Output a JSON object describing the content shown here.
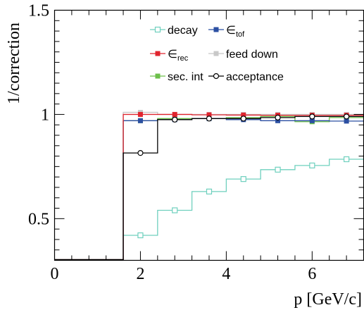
{
  "chart_data": {
    "type": "line",
    "step": true,
    "xlabel": "p [GeV/c]",
    "ylabel": "1/correction",
    "xlim": [
      0,
      7.2
    ],
    "ylim": [
      0.3,
      1.5
    ],
    "x_ticks": [
      0,
      2,
      4,
      6
    ],
    "x_tick_labels": [
      "0",
      "2",
      "4",
      "6"
    ],
    "y_ticks": [
      0.5,
      1,
      1.5
    ],
    "y_tick_labels": [
      "0.5",
      "1",
      "1.5"
    ],
    "grid": false,
    "legend_position": "top-right",
    "bin_edges": [
      0,
      1.6,
      2.4,
      3.2,
      4.0,
      4.8,
      5.6,
      6.4,
      7.2
    ],
    "bin_centers": [
      2.0,
      2.8,
      3.6,
      4.4,
      5.2,
      6.0,
      6.8
    ],
    "series": [
      {
        "name": "decay",
        "legend_label": "decay",
        "color": "#6fd0be",
        "marker": "open-square",
        "values": [
          0.42,
          0.54,
          0.63,
          0.69,
          0.735,
          0.755,
          0.785
        ]
      },
      {
        "name": "∈tof",
        "legend_label": "∈",
        "legend_sub": "tof",
        "color": "#2b4fa2",
        "marker": "filled-square",
        "values": [
          0.97,
          0.975,
          0.98,
          0.975,
          0.97,
          0.97,
          0.968
        ]
      },
      {
        "name": "∈rec",
        "legend_label": "∈",
        "legend_sub": "rec",
        "color": "#e0242e",
        "marker": "filled-square",
        "values": [
          1.0,
          1.0,
          0.998,
          0.997,
          0.996,
          0.996,
          0.996
        ]
      },
      {
        "name": "feed down",
        "legend_label": "feed down",
        "color": "#c8c8c8",
        "marker": "filled-square",
        "values": [
          1.01,
          1.0,
          1.0,
          1.0,
          1.0,
          1.0,
          1.0
        ]
      },
      {
        "name": "sec. int",
        "legend_label": "sec. int",
        "color": "#6cbf4a",
        "marker": "filled-square",
        "values": [
          0.97,
          0.98,
          0.98,
          0.985,
          0.99,
          0.965,
          0.985
        ]
      },
      {
        "name": "acceptance",
        "legend_label": "acceptance",
        "color": "#000000",
        "marker": "open-circle",
        "values": [
          0.815,
          0.975,
          0.98,
          0.98,
          0.985,
          0.99,
          0.99
        ]
      }
    ]
  }
}
